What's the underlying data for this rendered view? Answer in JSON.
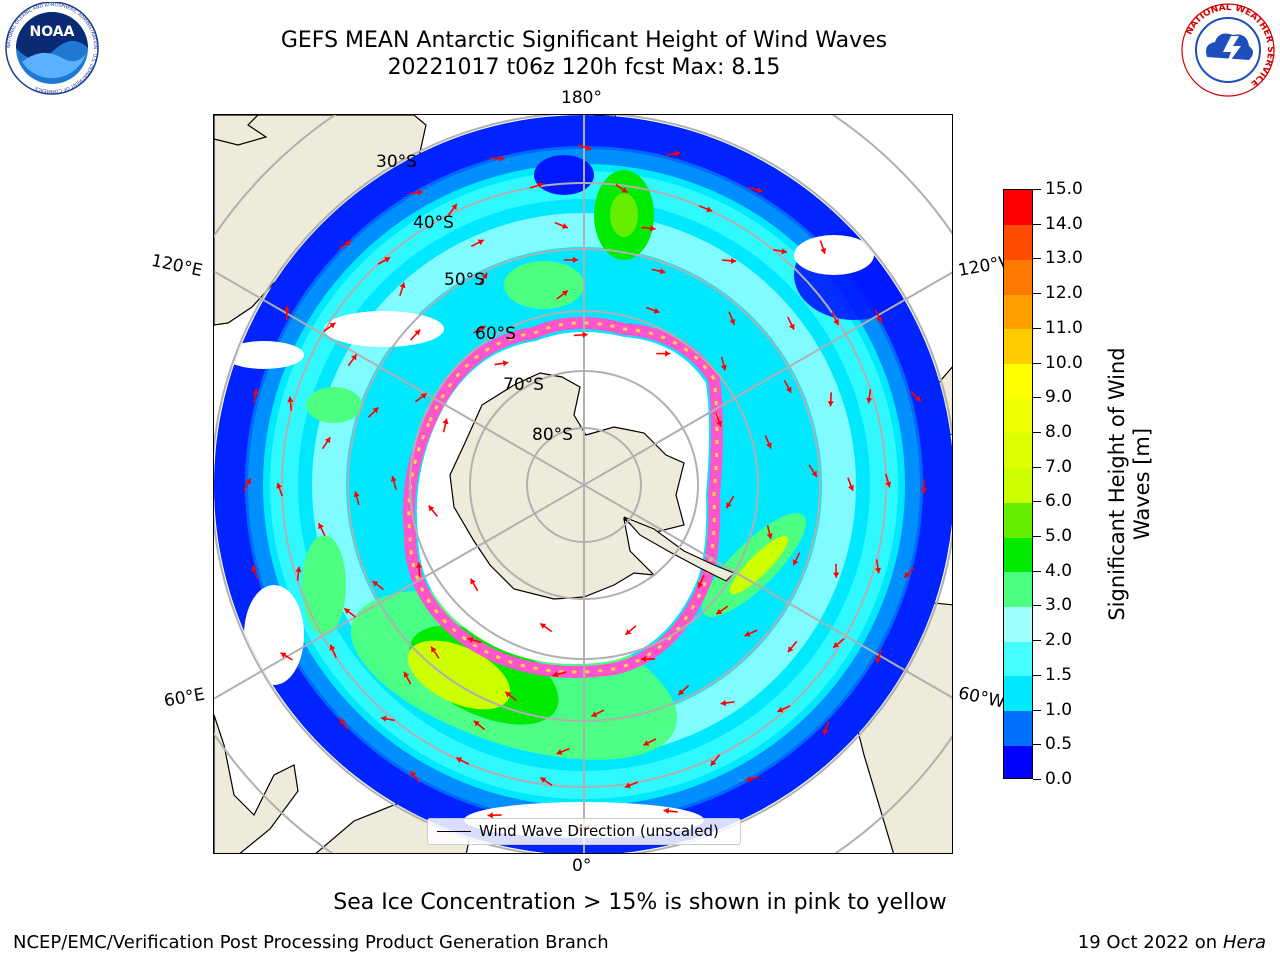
{
  "header": {
    "title_line1": "GEFS MEAN Antarctic Significant Height of Wind Waves",
    "title_line2": "20221017 t06z 120h fcst   Max: 8.15"
  },
  "logos": {
    "noaa": {
      "icon": "noaa-logo",
      "text": "NOAA",
      "ring_text": "NATIONAL OCEANIC AND ATMOSPHERIC ADMINISTRATION · U.S. DEPARTMENT OF COMMERCE"
    },
    "nws": {
      "icon": "nws-logo",
      "ring_text": "NATIONAL WEATHER SERVICE"
    }
  },
  "map": {
    "projection": "South Polar Stereographic",
    "longitude_labels": {
      "top": "180°",
      "bottom": "0°",
      "upper_left": "120°E",
      "upper_right": "120°W",
      "lower_left": "60°E",
      "lower_right": "60°W"
    },
    "latitude_labels": [
      "30°S",
      "40°S",
      "50°S",
      "60°S",
      "70°S",
      "80°S"
    ],
    "colors": {
      "land": "#efebdb",
      "coastline": "#000000",
      "grid": "#b0b0b0",
      "sea_ice_rim": [
        "#ff55cc",
        "#ffb6e0",
        "#ffd24d"
      ],
      "direction_arrows": "#ff0000"
    }
  },
  "legend": {
    "label": "Wind Wave Direction (unscaled)",
    "line_color": "#000000"
  },
  "colorbar": {
    "title": "Significant Height of Wind Waves [m]",
    "ticks": [
      "0.0",
      "0.5",
      "1.0",
      "1.5",
      "2.0",
      "3.0",
      "4.0",
      "5.0",
      "6.0",
      "7.0",
      "8.0",
      "9.0",
      "10.0",
      "11.0",
      "12.0",
      "13.0",
      "14.0",
      "15.0"
    ],
    "colors": [
      "#0000ff",
      "#0070ff",
      "#00eaff",
      "#44ffff",
      "#a0ffff",
      "#4dff80",
      "#00ea00",
      "#66ee00",
      "#ccff00",
      "#ddff00",
      "#eeff00",
      "#ffff00",
      "#ffcc00",
      "#ffa000",
      "#ff7800",
      "#ff4c00",
      "#ff0000"
    ]
  },
  "footer": {
    "note": "Sea Ice Concentration > 15% is shown in pink to yellow",
    "left": "NCEP/EMC/Verification Post Processing Product Generation Branch",
    "right_prefix": "19 Oct 2022 on ",
    "right_machine": "Hera"
  }
}
